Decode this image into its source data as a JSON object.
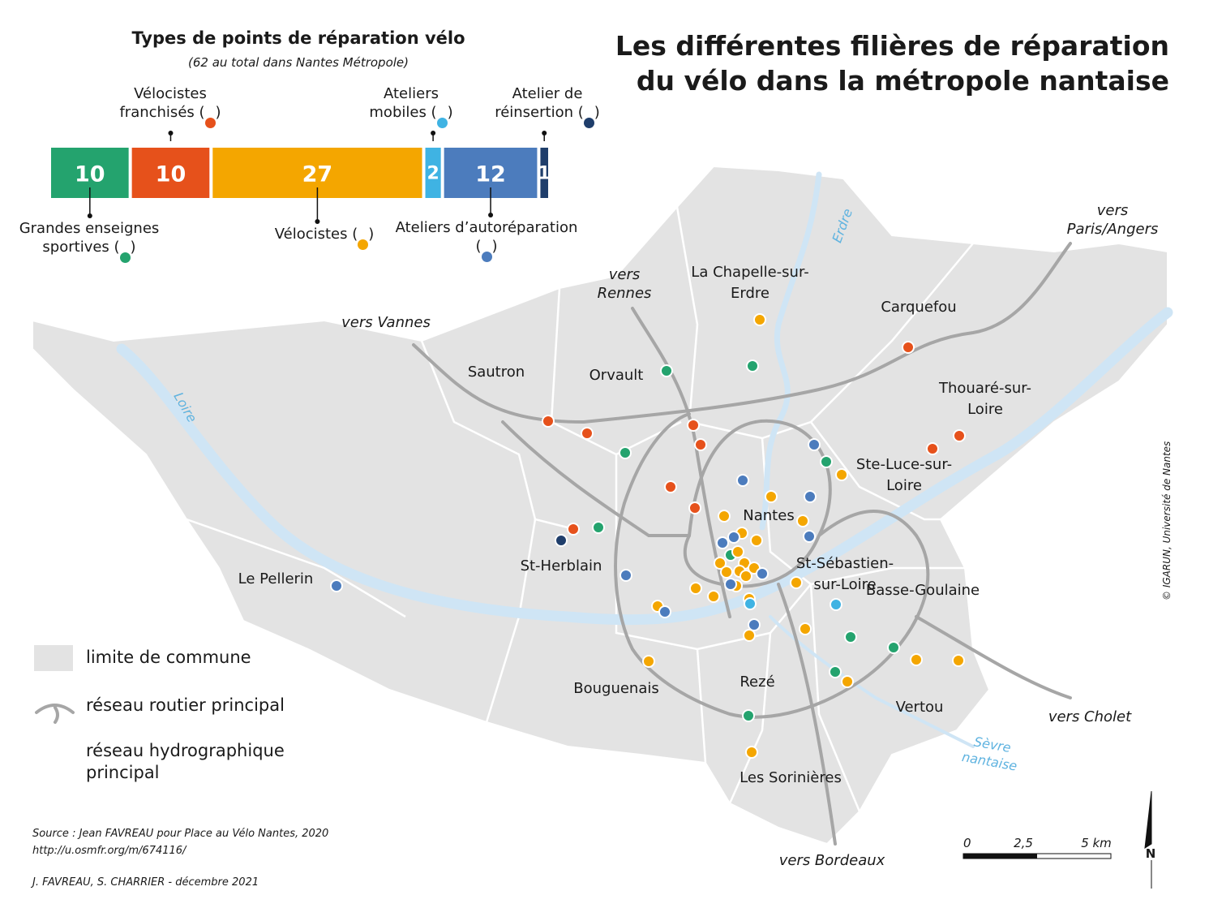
{
  "title": [
    "Les différentes filières de réparation",
    "du vélo dans la métropole nantaise"
  ],
  "chart_data": {
    "type": "bar",
    "title": "Types de points de réparation vélo",
    "subtitle": "(62 au total dans Nantes Métropole)",
    "categories": [
      "Grandes enseignes sportives (●)",
      "Vélocistes franchisés (●)",
      "Vélocistes (●)",
      "Ateliers mobiles (●)",
      "Ateliers d’autoréparation (●)",
      "Atelier de réinsertion (●)"
    ],
    "values": [
      10,
      10,
      27,
      2,
      12,
      1
    ],
    "colors": [
      "#24a36e",
      "#e6511b",
      "#f4a600",
      "#3fb3e3",
      "#4c7cbd",
      "#1f3e6b"
    ]
  },
  "map": {
    "communes": [
      "La Chapelle-sur-Erdre",
      "Carquefou",
      "Sautron",
      "Orvault",
      "Thouaré-sur-Loire",
      "Ste-Luce-sur-Loire",
      "Nantes",
      "St-Herblain",
      "St-Sébastien-sur-Loire",
      "Basse-Goulaine",
      "Le Pellerin",
      "Bouguenais",
      "Rezé",
      "Vertou",
      "Les Sorinières"
    ],
    "directions": [
      "vers Rennes",
      "vers Vannes",
      "vers Paris/Angers",
      "vers Cholet",
      "vers Bordeaux"
    ],
    "rivers": [
      "Erdre",
      "Loire",
      "Sèvre nantaise"
    ],
    "scale": [
      "0",
      "2,5",
      "5 km"
    ],
    "north": "N",
    "copyright": "© IGARUN, Université de Nantes"
  },
  "legend": [
    "limite de commune",
    "réseau routier principal",
    "réseau hydrographique principal"
  ],
  "source": [
    "Source : Jean FAVREAU pour Place au Vélo Nantes, 2020",
    "http://u.osmfr.org/m/674116/"
  ],
  "credit": "J. FAVREAU, S. CHARRIER - décembre 2021"
}
